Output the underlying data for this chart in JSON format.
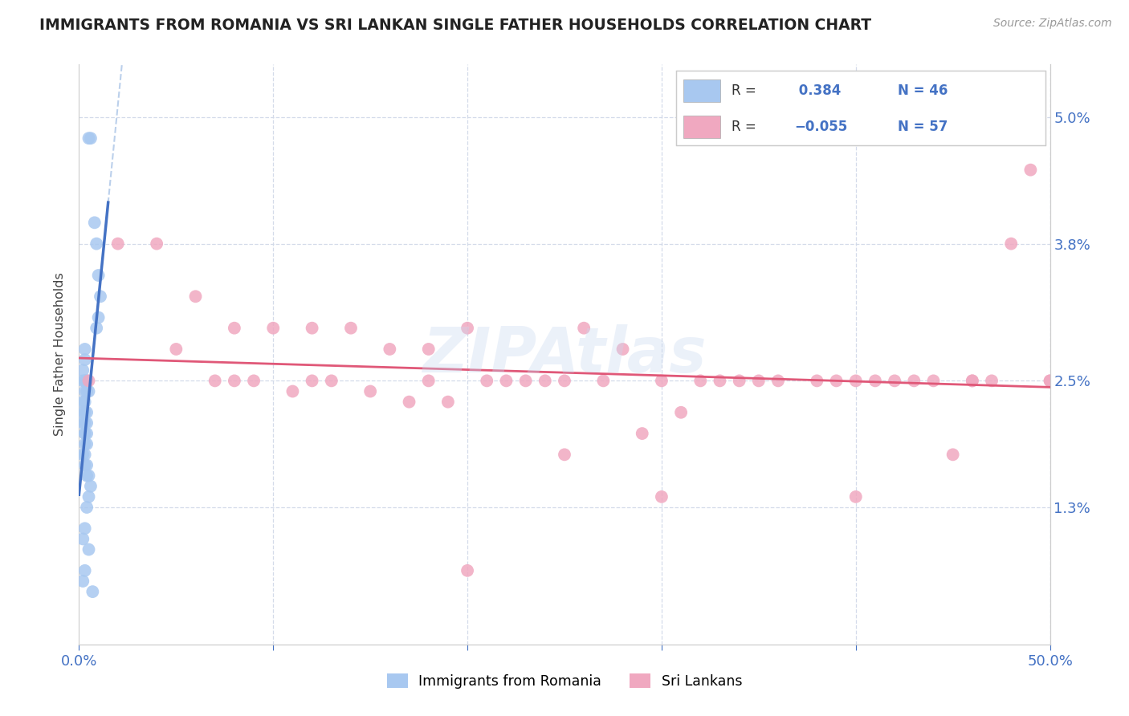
{
  "title": "IMMIGRANTS FROM ROMANIA VS SRI LANKAN SINGLE FATHER HOUSEHOLDS CORRELATION CHART",
  "source": "Source: ZipAtlas.com",
  "ylabel": "Single Father Households",
  "legend_r1": "R =  0.384",
  "legend_n1": "N = 46",
  "legend_r2": "R = -0.055",
  "legend_n2": "N = 57",
  "legend1_label": "Immigrants from Romania",
  "legend2_label": "Sri Lankans",
  "romania_color": "#a8c8f0",
  "srilanka_color": "#f0a8c0",
  "romania_line_color": "#4472c4",
  "srilanka_line_color": "#e05878",
  "watermark": "ZIPAtlas",
  "romania_x": [
    0.005,
    0.006,
    0.008,
    0.009,
    0.01,
    0.011,
    0.01,
    0.009,
    0.003,
    0.003,
    0.002,
    0.002,
    0.003,
    0.004,
    0.004,
    0.005,
    0.004,
    0.003,
    0.002,
    0.003,
    0.004,
    0.002,
    0.003,
    0.004,
    0.002,
    0.003,
    0.003,
    0.004,
    0.003,
    0.004,
    0.003,
    0.003,
    0.002,
    0.003,
    0.004,
    0.004,
    0.005,
    0.006,
    0.005,
    0.004,
    0.003,
    0.002,
    0.005,
    0.003,
    0.002,
    0.007
  ],
  "romania_y": [
    0.048,
    0.048,
    0.04,
    0.038,
    0.035,
    0.033,
    0.031,
    0.03,
    0.028,
    0.027,
    0.026,
    0.025,
    0.025,
    0.025,
    0.025,
    0.024,
    0.024,
    0.024,
    0.023,
    0.023,
    0.022,
    0.022,
    0.022,
    0.021,
    0.021,
    0.021,
    0.02,
    0.02,
    0.02,
    0.019,
    0.019,
    0.018,
    0.018,
    0.017,
    0.017,
    0.016,
    0.016,
    0.015,
    0.014,
    0.013,
    0.011,
    0.01,
    0.009,
    0.007,
    0.006,
    0.005
  ],
  "srilanka_x": [
    0.005,
    0.02,
    0.04,
    0.06,
    0.08,
    0.1,
    0.12,
    0.14,
    0.16,
    0.18,
    0.2,
    0.22,
    0.24,
    0.26,
    0.28,
    0.3,
    0.32,
    0.35,
    0.38,
    0.4,
    0.42,
    0.44,
    0.46,
    0.48,
    0.5,
    0.05,
    0.07,
    0.09,
    0.11,
    0.13,
    0.15,
    0.17,
    0.19,
    0.21,
    0.23,
    0.25,
    0.27,
    0.29,
    0.31,
    0.34,
    0.36,
    0.39,
    0.41,
    0.43,
    0.45,
    0.47,
    0.49,
    0.08,
    0.12,
    0.18,
    0.25,
    0.33,
    0.4,
    0.46,
    0.5,
    0.2,
    0.3
  ],
  "srilanka_y": [
    0.025,
    0.038,
    0.038,
    0.033,
    0.03,
    0.03,
    0.03,
    0.03,
    0.028,
    0.028,
    0.03,
    0.025,
    0.025,
    0.03,
    0.028,
    0.025,
    0.025,
    0.025,
    0.025,
    0.025,
    0.025,
    0.025,
    0.025,
    0.038,
    0.025,
    0.028,
    0.025,
    0.025,
    0.024,
    0.025,
    0.024,
    0.023,
    0.023,
    0.025,
    0.025,
    0.025,
    0.025,
    0.02,
    0.022,
    0.025,
    0.025,
    0.025,
    0.025,
    0.025,
    0.018,
    0.025,
    0.045,
    0.025,
    0.025,
    0.025,
    0.018,
    0.025,
    0.014,
    0.025,
    0.025,
    0.007,
    0.014
  ],
  "xlim": [
    0.0,
    0.5
  ],
  "ylim": [
    0.0,
    0.055
  ],
  "y_tick_vals": [
    0.013,
    0.025,
    0.038,
    0.05
  ],
  "y_tick_labels": [
    "1.3%",
    "2.5%",
    "3.8%",
    "5.0%"
  ],
  "x_tick_vals": [
    0.0,
    0.1,
    0.2,
    0.3,
    0.4,
    0.5
  ],
  "x_tick_labels": [
    "0.0%",
    "",
    "",
    "",
    "",
    "50.0%"
  ],
  "blue_reg_slope": 2.8,
  "blue_reg_intercept": 0.008,
  "pink_reg_slope": -0.012,
  "pink_reg_intercept": 0.026
}
